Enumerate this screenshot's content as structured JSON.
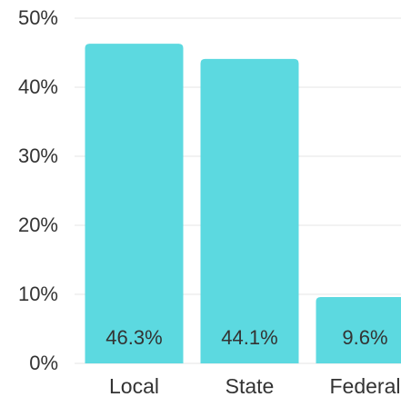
{
  "chart_data": {
    "type": "bar",
    "categories": [
      "Local",
      "State",
      "Federal"
    ],
    "values": [
      46.3,
      44.1,
      9.6
    ],
    "value_labels": [
      "46.3%",
      "44.1%",
      "9.6%"
    ],
    "color": "#5cd9e0",
    "ylim": [
      0,
      50
    ],
    "yticks": [
      {
        "value": 0,
        "label": "0%"
      },
      {
        "value": 10,
        "label": "10%"
      },
      {
        "value": 20,
        "label": "20%"
      },
      {
        "value": 30,
        "label": "30%"
      },
      {
        "value": 40,
        "label": "40%"
      },
      {
        "value": 50,
        "label": "50%"
      }
    ],
    "grid": true
  }
}
